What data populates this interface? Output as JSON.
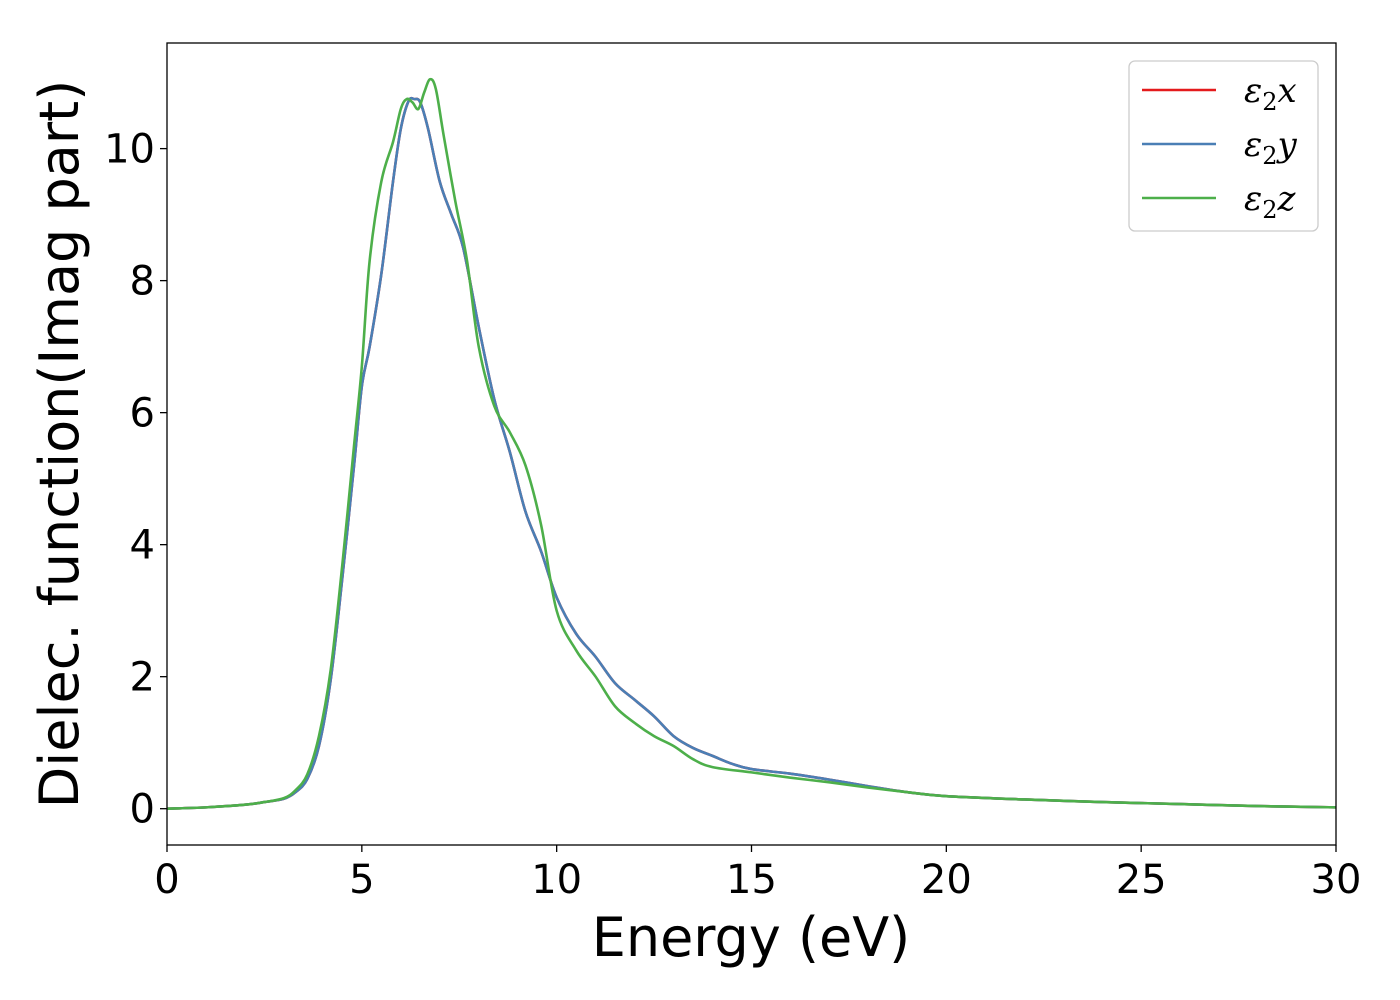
{
  "chart_data": {
    "type": "line",
    "xlabel": "Energy (eV)",
    "ylabel": "Dielec. function(Imag part)",
    "xlim": [
      0,
      30
    ],
    "ylim": [
      -0.55,
      11.6
    ],
    "xticks": [
      0,
      5,
      10,
      15,
      20,
      25,
      30
    ],
    "yticks": [
      0,
      2,
      4,
      6,
      8,
      10
    ],
    "grid": false,
    "legend_position": "top-right",
    "series": [
      {
        "name": "ε2x",
        "legend": {
          "symbol": "ε",
          "sub": "2",
          "axis": "x"
        },
        "color": "#e41a1c",
        "x": [
          0,
          1,
          2,
          2.5,
          3,
          3.3,
          3.6,
          3.9,
          4.2,
          4.5,
          4.8,
          5.0,
          5.2,
          5.5,
          5.8,
          6.0,
          6.2,
          6.35,
          6.5,
          6.7,
          7.0,
          7.3,
          7.6,
          8.0,
          8.4,
          8.8,
          9.2,
          9.6,
          10.0,
          10.5,
          11.0,
          11.5,
          12.0,
          12.5,
          13.0,
          13.5,
          14.0,
          14.5,
          15.0,
          16.0,
          17.0,
          18.0,
          19.0,
          20.0,
          22.0,
          24.0,
          26.0,
          28.0,
          30.0
        ],
        "values": [
          0,
          0.02,
          0.06,
          0.1,
          0.15,
          0.25,
          0.45,
          0.95,
          1.95,
          3.5,
          5.2,
          6.4,
          7.0,
          8.1,
          9.5,
          10.3,
          10.72,
          10.75,
          10.7,
          10.3,
          9.5,
          9.0,
          8.5,
          7.3,
          6.2,
          5.4,
          4.5,
          3.9,
          3.2,
          2.65,
          2.3,
          1.9,
          1.65,
          1.4,
          1.1,
          0.92,
          0.8,
          0.68,
          0.6,
          0.53,
          0.44,
          0.34,
          0.25,
          0.19,
          0.14,
          0.1,
          0.07,
          0.04,
          0.02
        ]
      },
      {
        "name": "ε2y",
        "legend": {
          "symbol": "ε",
          "sub": "2",
          "axis": "y"
        },
        "color": "#4a7fb5",
        "x": [
          0,
          1,
          2,
          2.5,
          3,
          3.3,
          3.6,
          3.9,
          4.2,
          4.5,
          4.8,
          5.0,
          5.2,
          5.5,
          5.8,
          6.0,
          6.2,
          6.35,
          6.5,
          6.7,
          7.0,
          7.3,
          7.6,
          8.0,
          8.4,
          8.8,
          9.2,
          9.6,
          10.0,
          10.5,
          11.0,
          11.5,
          12.0,
          12.5,
          13.0,
          13.5,
          14.0,
          14.5,
          15.0,
          16.0,
          17.0,
          18.0,
          19.0,
          20.0,
          22.0,
          24.0,
          26.0,
          28.0,
          30.0
        ],
        "values": [
          0,
          0.02,
          0.06,
          0.1,
          0.15,
          0.25,
          0.45,
          0.95,
          1.95,
          3.5,
          5.2,
          6.4,
          7.0,
          8.1,
          9.5,
          10.3,
          10.72,
          10.75,
          10.7,
          10.3,
          9.5,
          9.0,
          8.5,
          7.3,
          6.2,
          5.4,
          4.5,
          3.9,
          3.2,
          2.65,
          2.3,
          1.9,
          1.65,
          1.4,
          1.1,
          0.92,
          0.8,
          0.68,
          0.6,
          0.53,
          0.44,
          0.34,
          0.25,
          0.19,
          0.14,
          0.1,
          0.07,
          0.04,
          0.02
        ]
      },
      {
        "name": "ε2z",
        "legend": {
          "symbol": "ε",
          "sub": "2",
          "axis": "z"
        },
        "color": "#4daf4a",
        "x": [
          0,
          1,
          2,
          2.5,
          3,
          3.3,
          3.6,
          3.9,
          4.2,
          4.5,
          4.8,
          5.0,
          5.2,
          5.5,
          5.8,
          6.0,
          6.15,
          6.3,
          6.45,
          6.6,
          6.75,
          6.9,
          7.1,
          7.4,
          7.7,
          8.0,
          8.4,
          8.8,
          9.2,
          9.6,
          10.0,
          10.5,
          11.0,
          11.5,
          12.0,
          12.5,
          13.0,
          13.5,
          14.0,
          15.0,
          16.0,
          17.0,
          18.0,
          19.0,
          20.0,
          22.0,
          24.0,
          26.0,
          28.0,
          30.0
        ],
        "values": [
          0,
          0.02,
          0.06,
          0.1,
          0.16,
          0.28,
          0.52,
          1.1,
          2.1,
          3.7,
          5.5,
          6.7,
          8.3,
          9.5,
          10.1,
          10.6,
          10.75,
          10.7,
          10.6,
          10.85,
          11.05,
          10.9,
          10.2,
          9.2,
          8.3,
          7.0,
          6.1,
          5.7,
          5.2,
          4.3,
          3.0,
          2.4,
          2.0,
          1.55,
          1.3,
          1.1,
          0.95,
          0.75,
          0.63,
          0.55,
          0.47,
          0.4,
          0.32,
          0.25,
          0.19,
          0.14,
          0.1,
          0.07,
          0.04,
          0.02
        ]
      }
    ]
  }
}
